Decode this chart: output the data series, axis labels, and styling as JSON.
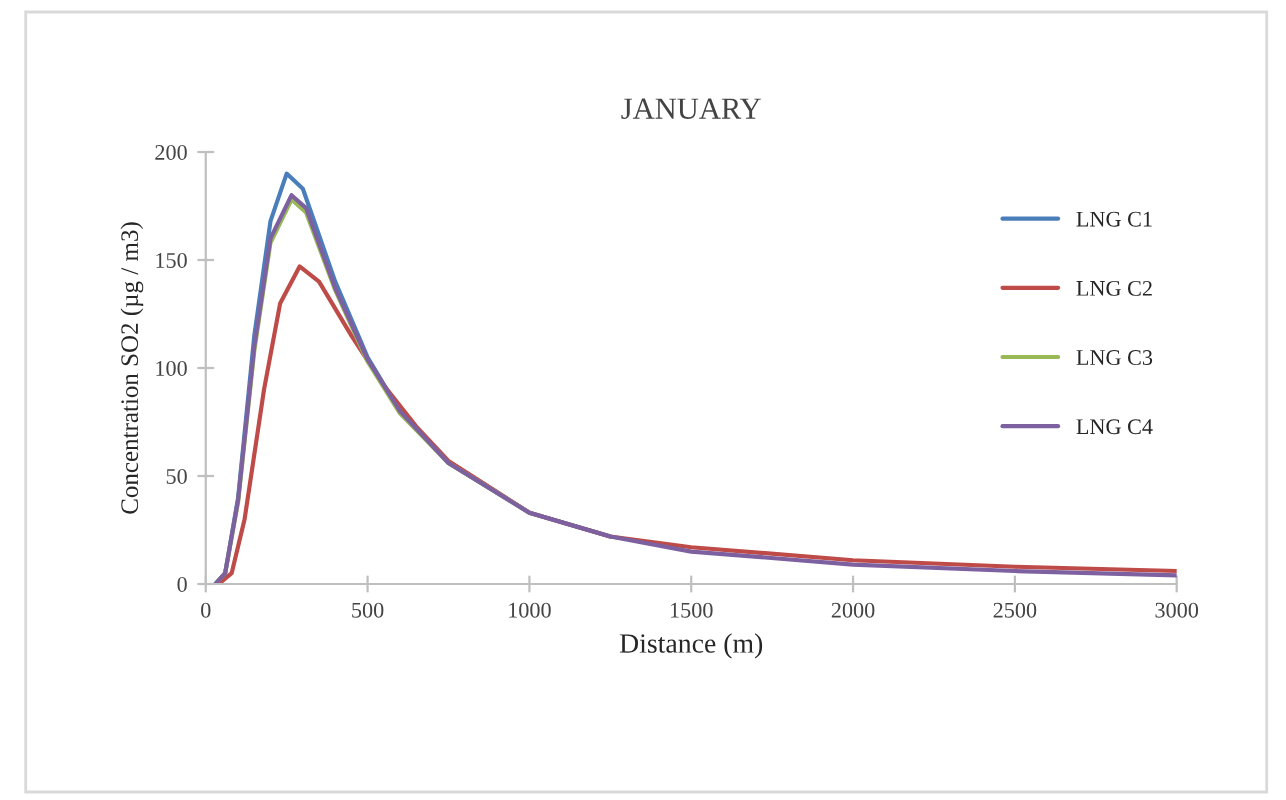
{
  "chart_data": {
    "type": "line",
    "title": "JANUARY",
    "xlabel": "Distance (m)",
    "ylabel": "Concentration SO2 (µg / m3)",
    "xlim": [
      0,
      3000
    ],
    "xticks": [
      0,
      500,
      1000,
      1500,
      2000,
      2500,
      3000
    ],
    "ylim": [
      0,
      200
    ],
    "yticks": [
      0,
      50,
      100,
      150,
      200
    ],
    "grid": false,
    "legend": "right",
    "marker": "none",
    "line_style": "solid",
    "series": [
      {
        "name": "LNG C1",
        "color": "#4a7ebb",
        "x": [
          30,
          60,
          100,
          150,
          200,
          250,
          300,
          400,
          500,
          600,
          750,
          1000,
          1250
        ],
        "values": [
          0,
          5,
          40,
          115,
          168,
          190,
          183,
          140,
          105,
          80,
          56,
          33,
          22
        ]
      },
      {
        "name": "LNG C2",
        "color": "#be4b48",
        "x": [
          40,
          80,
          120,
          180,
          230,
          290,
          350,
          450,
          550,
          650,
          750,
          1000,
          1250,
          1500,
          2000,
          2500,
          3000
        ],
        "values": [
          0,
          5,
          30,
          90,
          130,
          147,
          140,
          115,
          92,
          73,
          57,
          33,
          22,
          17,
          11,
          8,
          6
        ]
      },
      {
        "name": "LNG C3",
        "color": "#98b954",
        "x": [
          30,
          60,
          100,
          150,
          200,
          265,
          310,
          400,
          500,
          600,
          750,
          1000
        ],
        "values": [
          0,
          5,
          38,
          108,
          158,
          178,
          172,
          136,
          103,
          79,
          56,
          33
        ]
      },
      {
        "name": "LNG C4",
        "color": "#7d60a0",
        "x": [
          30,
          60,
          100,
          150,
          200,
          265,
          310,
          400,
          500,
          600,
          750,
          1000,
          1250,
          1500,
          2000,
          2500,
          3000
        ],
        "values": [
          0,
          5,
          39,
          110,
          160,
          180,
          174,
          137,
          104,
          80,
          56,
          33,
          22,
          15,
          9,
          6,
          4
        ]
      }
    ]
  }
}
